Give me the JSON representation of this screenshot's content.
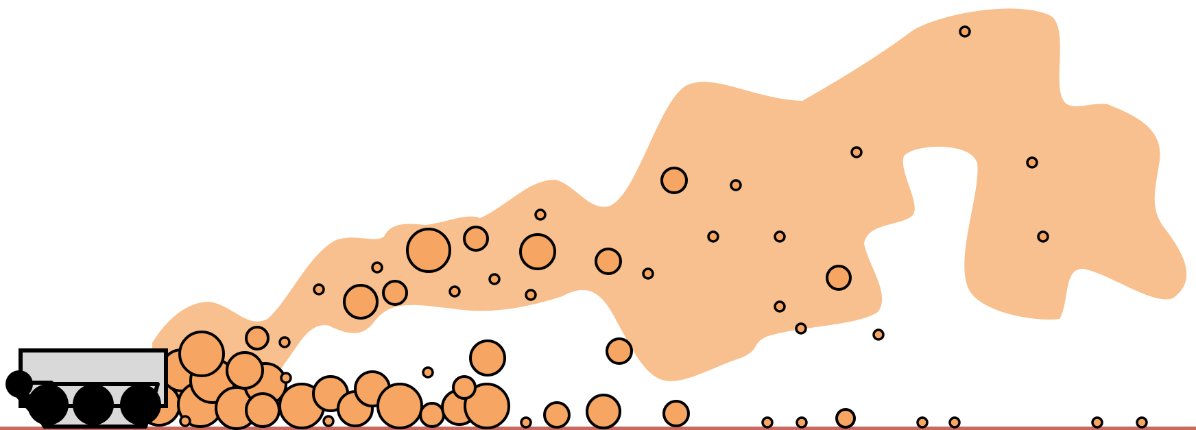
{
  "scene": {
    "description_items": [
      "dust-cloud",
      "ground-line",
      "cart",
      "particles"
    ],
    "colors": {
      "background": "#ffffff",
      "dust_cloud": "#f8c08e",
      "particle_fill": "#f6a562",
      "particle_stroke": "#000000",
      "ground": "#c96a5f",
      "cart_body": "#d9d9d9",
      "wheel": "#000000"
    },
    "icons": {
      "cart": "cart-icon",
      "wheel": "wheel-icon"
    }
  }
}
